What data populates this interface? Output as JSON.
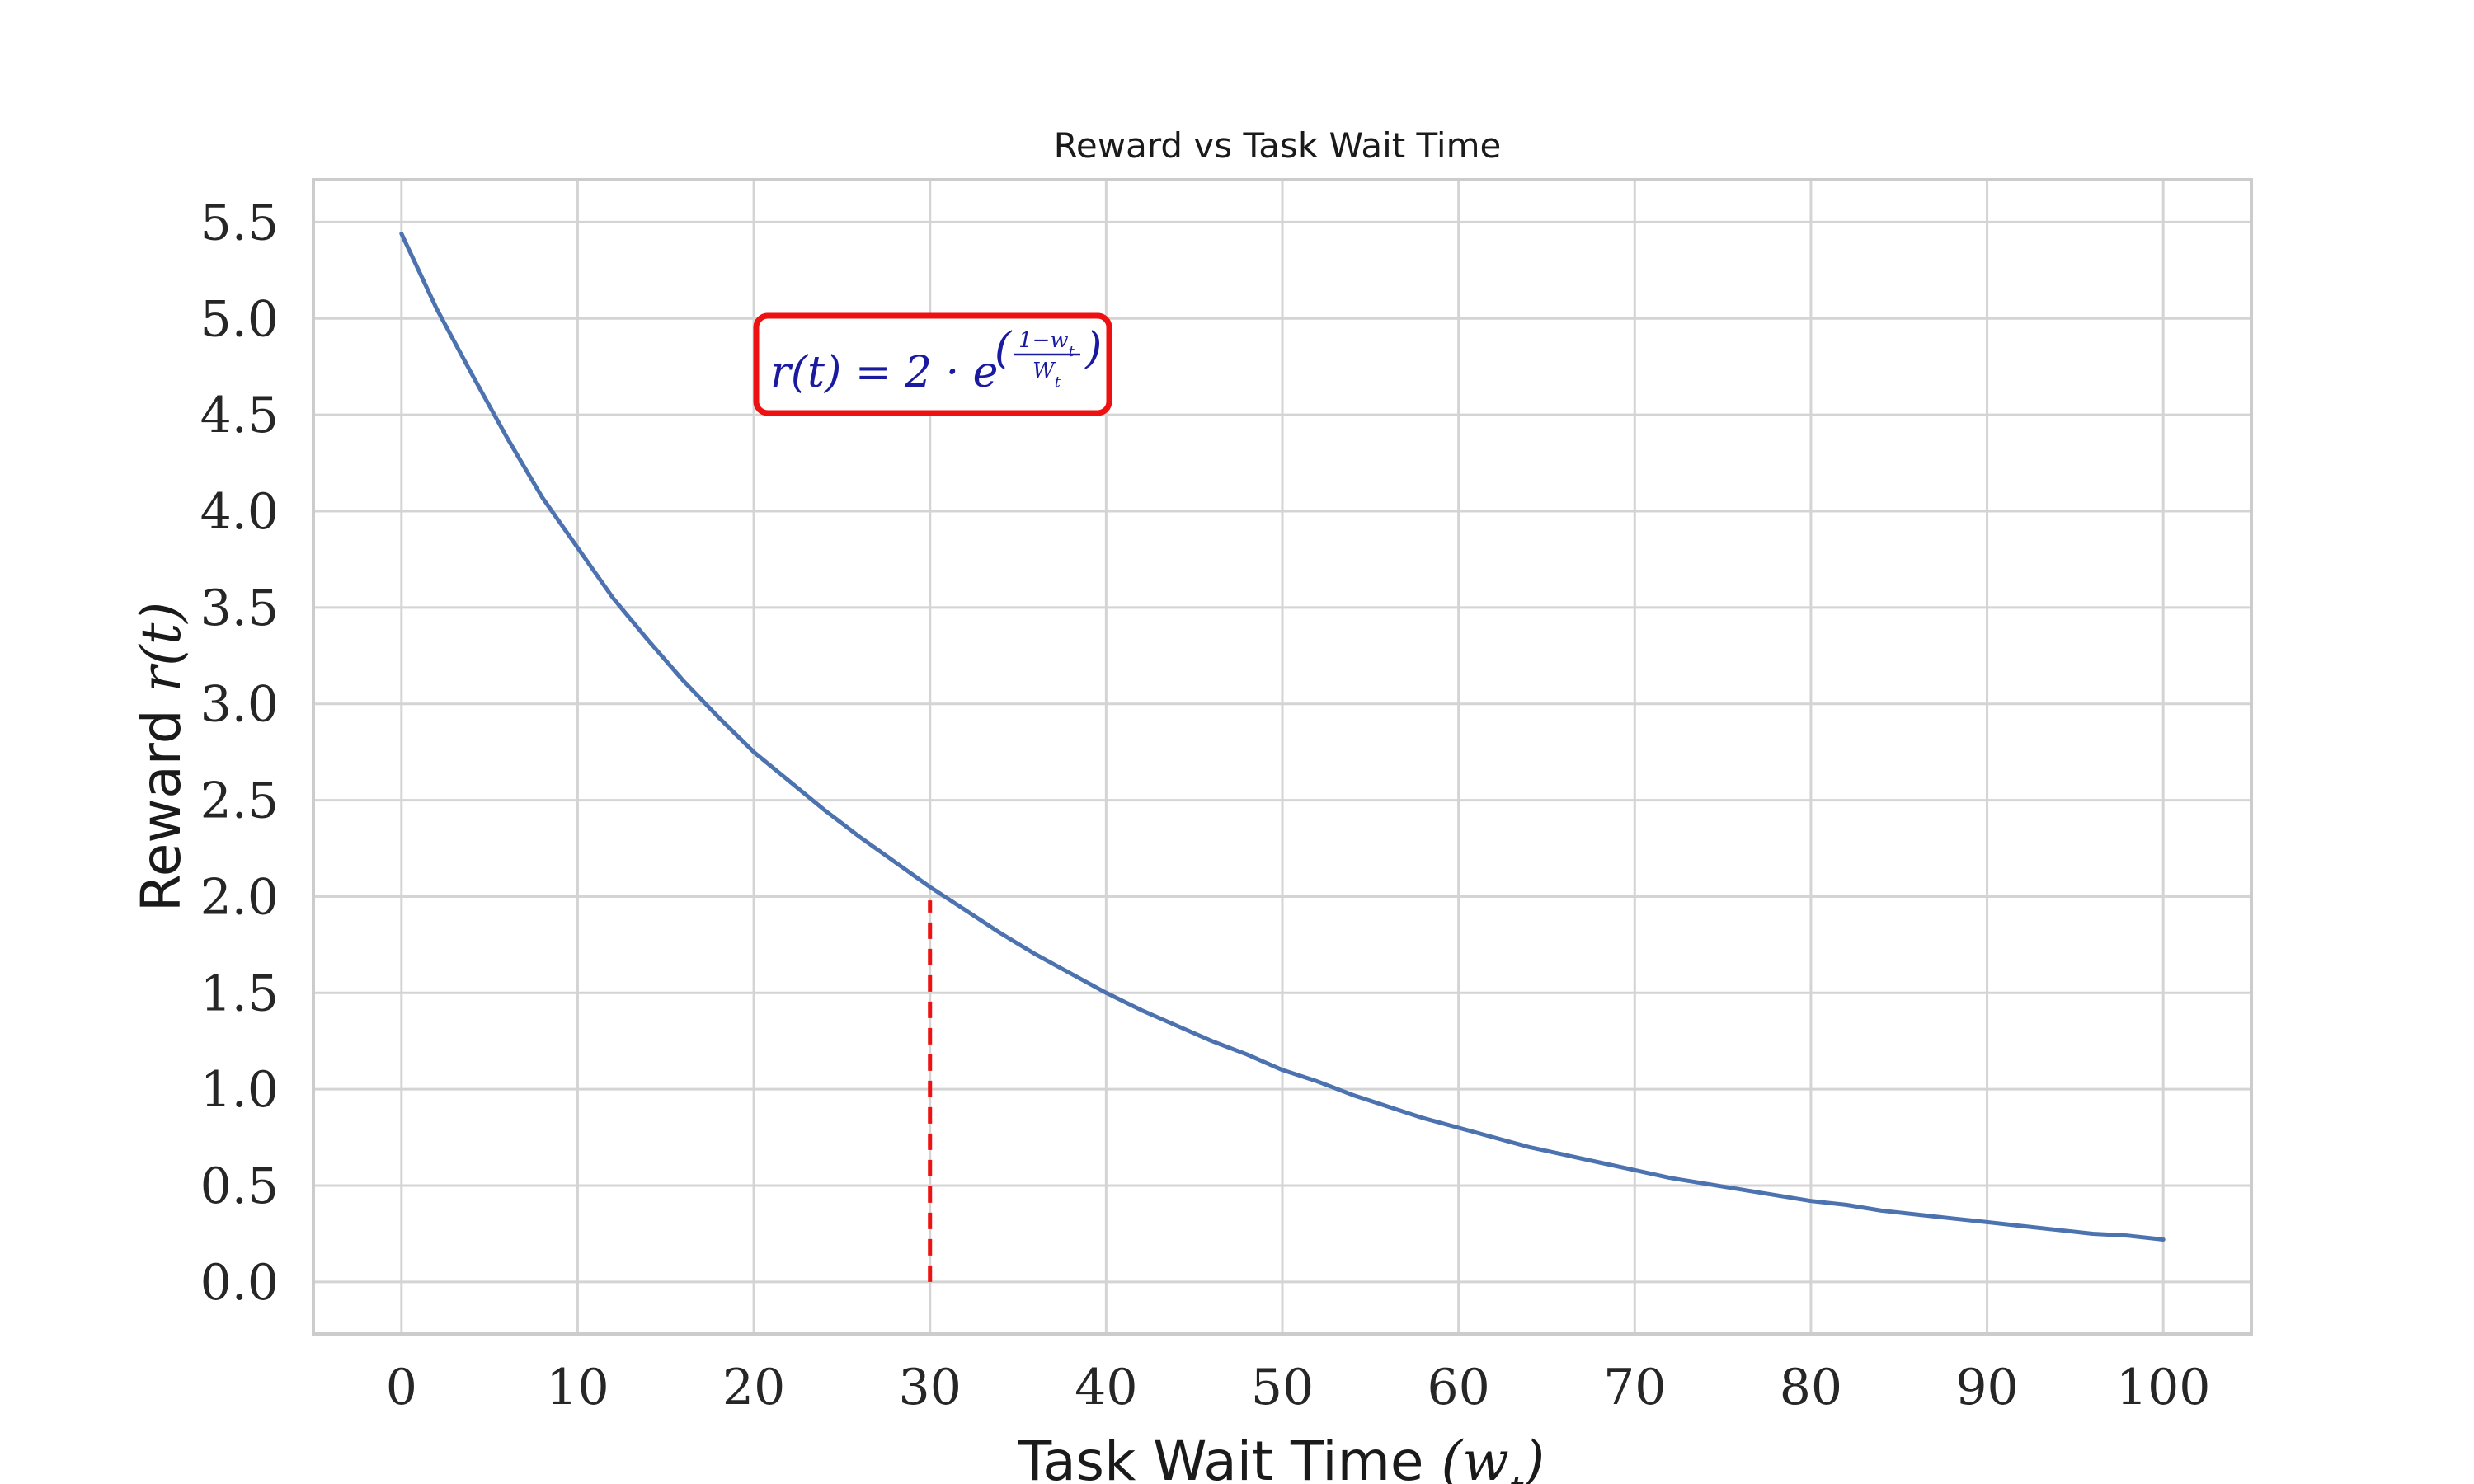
{
  "colors": {
    "series": "#4c72b0",
    "marker": "#ee1111",
    "box_border": "#ee1111",
    "formula_text": "#1a1aa0"
  },
  "chart_data": {
    "type": "line",
    "title": "Reward vs Task Wait Time",
    "xlabel": {
      "text": "Task Wait Time ",
      "math": "(w",
      "sub": "t",
      "close": ")"
    },
    "ylabel": {
      "text": "Reward ",
      "math": "r(t)"
    },
    "xlim": [
      -5,
      105
    ],
    "ylim": [
      -0.27,
      5.72
    ],
    "xticks": [
      0,
      10,
      20,
      30,
      40,
      50,
      60,
      70,
      80,
      90,
      100
    ],
    "xtick_labels": [
      "0",
      "10",
      "20",
      "30",
      "40",
      "50",
      "60",
      "70",
      "80",
      "90",
      "100"
    ],
    "yticks": [
      0,
      0.5,
      1,
      1.5,
      2,
      2.5,
      3,
      3.5,
      4,
      4.5,
      5,
      5.5
    ],
    "ytick_labels": [
      "0.0",
      "0.5",
      "1.0",
      "1.5",
      "2.0",
      "2.5",
      "3.0",
      "3.5",
      "4.0",
      "4.5",
      "5.0",
      "5.5"
    ],
    "grid": true,
    "series": [
      {
        "x": [
          0,
          2,
          4,
          6,
          8,
          10,
          12,
          14,
          16,
          18,
          20,
          22,
          24,
          26,
          28,
          30,
          32,
          34,
          36,
          38,
          40,
          42,
          44,
          46,
          48,
          50,
          52,
          54,
          56,
          58,
          60,
          62,
          64,
          66,
          68,
          70,
          72,
          74,
          76,
          78,
          80,
          82,
          84,
          86,
          88,
          90,
          92,
          94,
          96,
          98,
          100
        ],
        "values": [
          5.44,
          5.05,
          4.71,
          4.38,
          4.07,
          3.81,
          3.55,
          3.33,
          3.12,
          2.93,
          2.75,
          2.6,
          2.45,
          2.31,
          2.18,
          2.05,
          1.93,
          1.81,
          1.7,
          1.6,
          1.5,
          1.41,
          1.33,
          1.25,
          1.18,
          1.1,
          1.04,
          0.97,
          0.91,
          0.85,
          0.8,
          0.75,
          0.7,
          0.66,
          0.62,
          0.58,
          0.54,
          0.51,
          0.48,
          0.45,
          0.42,
          0.4,
          0.37,
          0.35,
          0.33,
          0.31,
          0.29,
          0.27,
          0.25,
          0.24,
          0.22
        ]
      }
    ],
    "vline": {
      "x": 30,
      "y_from": 0,
      "y_to": 1.98
    },
    "annotation": {
      "lhs": "r(t) = 2 · e",
      "exp_open": "(",
      "numerator": "1−w",
      "numerator_sub": "t",
      "denominator": "W",
      "denominator_sub": "t",
      "exp_close": ")"
    }
  }
}
